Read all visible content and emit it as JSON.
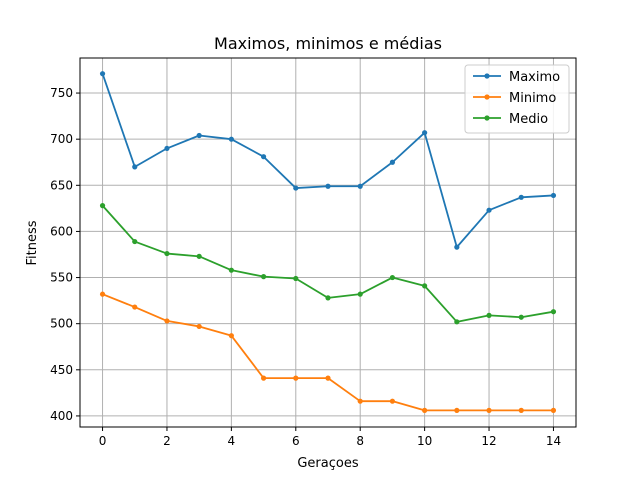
{
  "chart_data": {
    "type": "line",
    "title": "Maximos, minimos e médias",
    "xlabel": "Geraçoes",
    "ylabel": "Fitness",
    "x": [
      0,
      1,
      2,
      3,
      4,
      5,
      6,
      7,
      8,
      9,
      10,
      11,
      12,
      13,
      14
    ],
    "xlim": [
      -0.7,
      14.7
    ],
    "ylim": [
      388,
      788
    ],
    "xticks": [
      0,
      2,
      4,
      6,
      8,
      10,
      12,
      14
    ],
    "yticks": [
      400,
      450,
      500,
      550,
      600,
      650,
      700,
      750
    ],
    "grid": true,
    "legend_position": "top-right",
    "series": [
      {
        "name": "Maximo",
        "color": "#1f77b4",
        "values": [
          771,
          670,
          690,
          704,
          700,
          681,
          647,
          649,
          649,
          675,
          707,
          583,
          623,
          637,
          639
        ]
      },
      {
        "name": "Minimo",
        "color": "#ff7f0e",
        "values": [
          532,
          518,
          503,
          497,
          487,
          441,
          441,
          441,
          416,
          416,
          406,
          406,
          406,
          406,
          406
        ]
      },
      {
        "name": "Medio",
        "color": "#2ca02c",
        "values": [
          628,
          589,
          576,
          573,
          558,
          551,
          549,
          528,
          532,
          550,
          541,
          502,
          509,
          507,
          513
        ]
      }
    ]
  }
}
